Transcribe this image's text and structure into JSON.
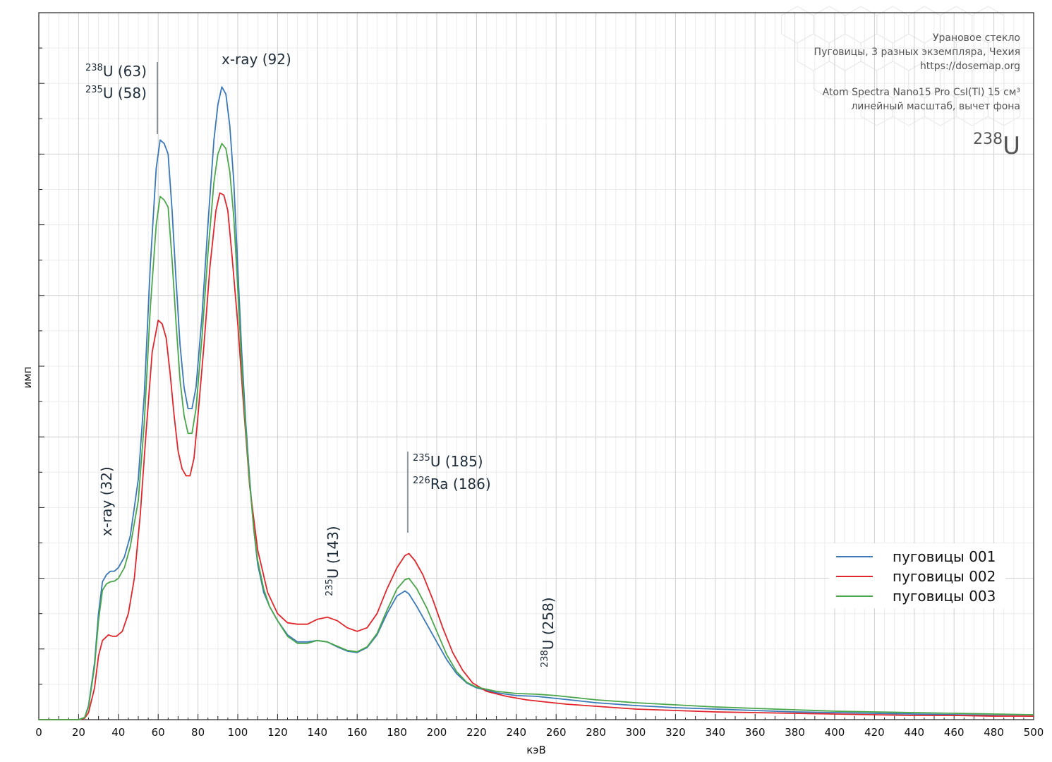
{
  "colors": {
    "series1": "#3a78b8",
    "series2": "#e0262b",
    "series3": "#4aa64a",
    "grid": "#d4d4d4",
    "axis": "#222222"
  },
  "info": {
    "lines": [
      "Урановое стекло",
      "Пуговицы, 3 разных экземпляра, Чехия",
      "https://dosemap.org",
      "Atom Spectra Nano15 Pro CsI(Tl) 15 см³",
      "линейный масштаб, вычет фона"
    ],
    "isotope_mass": "238",
    "isotope_symbol": "U"
  },
  "annotations": [
    {
      "id": "u238-63",
      "sup": "238",
      "text": "U (63)",
      "energy": 63
    },
    {
      "id": "u235-58",
      "sup": "235",
      "text": "U (58)",
      "energy": 58
    },
    {
      "id": "xray-92",
      "sup": "",
      "text": "x-ray (92)",
      "energy": 92
    },
    {
      "id": "xray-32",
      "sup": "",
      "text": "x-ray (32)",
      "energy": 32
    },
    {
      "id": "u235-143",
      "sup": "235",
      "text": "U (143)",
      "energy": 143
    },
    {
      "id": "u235-185",
      "sup": "235",
      "text": "U (185)",
      "energy": 185
    },
    {
      "id": "ra226-186",
      "sup": "226",
      "text": "Ra (186)",
      "energy": 186
    },
    {
      "id": "u238-258",
      "sup": "238",
      "text": "U (258)",
      "energy": 258
    }
  ],
  "chart_data": {
    "type": "line",
    "xlabel": "кэВ",
    "ylabel": "имп",
    "xlim": [
      0,
      500
    ],
    "ylim": [
      0,
      1000
    ],
    "x_ticks": [
      0,
      20,
      40,
      60,
      80,
      100,
      120,
      140,
      160,
      180,
      200,
      220,
      240,
      260,
      280,
      300,
      320,
      340,
      360,
      380,
      400,
      420,
      440,
      460,
      480,
      500
    ],
    "grid": true,
    "legend": "lower-right",
    "series": [
      {
        "name": "пуговицы 001",
        "color": "#3a78b8",
        "points": [
          [
            0,
            0
          ],
          [
            20,
            0
          ],
          [
            23,
            3
          ],
          [
            25,
            20
          ],
          [
            28,
            80
          ],
          [
            30,
            150
          ],
          [
            32,
            195
          ],
          [
            34,
            205
          ],
          [
            36,
            210
          ],
          [
            38,
            210
          ],
          [
            40,
            215
          ],
          [
            43,
            230
          ],
          [
            46,
            260
          ],
          [
            50,
            340
          ],
          [
            53,
            460
          ],
          [
            56,
            640
          ],
          [
            59,
            780
          ],
          [
            61,
            820
          ],
          [
            63,
            815
          ],
          [
            65,
            800
          ],
          [
            67,
            720
          ],
          [
            69,
            620
          ],
          [
            71,
            530
          ],
          [
            73,
            470
          ],
          [
            75,
            440
          ],
          [
            77,
            440
          ],
          [
            79,
            470
          ],
          [
            82,
            570
          ],
          [
            85,
            700
          ],
          [
            88,
            820
          ],
          [
            90,
            870
          ],
          [
            92,
            895
          ],
          [
            94,
            885
          ],
          [
            96,
            840
          ],
          [
            98,
            760
          ],
          [
            100,
            640
          ],
          [
            102,
            520
          ],
          [
            104,
            420
          ],
          [
            106,
            340
          ],
          [
            108,
            270
          ],
          [
            110,
            220
          ],
          [
            113,
            180
          ],
          [
            116,
            160
          ],
          [
            120,
            140
          ],
          [
            125,
            120
          ],
          [
            130,
            110
          ],
          [
            135,
            110
          ],
          [
            140,
            112
          ],
          [
            145,
            110
          ],
          [
            150,
            103
          ],
          [
            155,
            97
          ],
          [
            160,
            95
          ],
          [
            165,
            102
          ],
          [
            170,
            120
          ],
          [
            175,
            150
          ],
          [
            180,
            175
          ],
          [
            184,
            182
          ],
          [
            186,
            178
          ],
          [
            190,
            160
          ],
          [
            195,
            135
          ],
          [
            200,
            110
          ],
          [
            205,
            85
          ],
          [
            210,
            65
          ],
          [
            215,
            52
          ],
          [
            220,
            45
          ],
          [
            230,
            38
          ],
          [
            240,
            34
          ],
          [
            250,
            33
          ],
          [
            260,
            30
          ],
          [
            270,
            27
          ],
          [
            280,
            24
          ],
          [
            290,
            22
          ],
          [
            300,
            20
          ],
          [
            320,
            17
          ],
          [
            340,
            15
          ],
          [
            360,
            13
          ],
          [
            380,
            11
          ],
          [
            400,
            10
          ],
          [
            420,
            9
          ],
          [
            440,
            8
          ],
          [
            460,
            7
          ],
          [
            480,
            6
          ],
          [
            500,
            5
          ]
        ]
      },
      {
        "name": "пуговицы 002",
        "color": "#e0262b",
        "points": [
          [
            0,
            0
          ],
          [
            20,
            0
          ],
          [
            23,
            2
          ],
          [
            25,
            10
          ],
          [
            28,
            45
          ],
          [
            30,
            90
          ],
          [
            32,
            112
          ],
          [
            35,
            120
          ],
          [
            37,
            118
          ],
          [
            39,
            118
          ],
          [
            42,
            125
          ],
          [
            45,
            150
          ],
          [
            48,
            200
          ],
          [
            51,
            290
          ],
          [
            54,
            410
          ],
          [
            57,
            520
          ],
          [
            60,
            565
          ],
          [
            62,
            560
          ],
          [
            64,
            540
          ],
          [
            66,
            490
          ],
          [
            68,
            430
          ],
          [
            70,
            380
          ],
          [
            72,
            355
          ],
          [
            74,
            345
          ],
          [
            76,
            345
          ],
          [
            78,
            370
          ],
          [
            80,
            430
          ],
          [
            83,
            530
          ],
          [
            86,
            640
          ],
          [
            89,
            720
          ],
          [
            91,
            745
          ],
          [
            93,
            742
          ],
          [
            95,
            720
          ],
          [
            97,
            660
          ],
          [
            100,
            560
          ],
          [
            103,
            440
          ],
          [
            106,
            330
          ],
          [
            110,
            240
          ],
          [
            115,
            180
          ],
          [
            120,
            150
          ],
          [
            125,
            137
          ],
          [
            130,
            135
          ],
          [
            135,
            135
          ],
          [
            140,
            142
          ],
          [
            145,
            145
          ],
          [
            150,
            140
          ],
          [
            155,
            130
          ],
          [
            160,
            125
          ],
          [
            165,
            130
          ],
          [
            170,
            150
          ],
          [
            175,
            185
          ],
          [
            180,
            215
          ],
          [
            184,
            232
          ],
          [
            186,
            235
          ],
          [
            189,
            225
          ],
          [
            193,
            205
          ],
          [
            198,
            170
          ],
          [
            203,
            130
          ],
          [
            208,
            95
          ],
          [
            213,
            70
          ],
          [
            218,
            52
          ],
          [
            225,
            40
          ],
          [
            235,
            33
          ],
          [
            245,
            28
          ],
          [
            255,
            25
          ],
          [
            265,
            22
          ],
          [
            275,
            20
          ],
          [
            290,
            17
          ],
          [
            300,
            15
          ],
          [
            320,
            13
          ],
          [
            340,
            11
          ],
          [
            360,
            10
          ],
          [
            380,
            9
          ],
          [
            400,
            8
          ],
          [
            420,
            7
          ],
          [
            440,
            6
          ],
          [
            460,
            6
          ],
          [
            480,
            5
          ],
          [
            500,
            5
          ]
        ]
      },
      {
        "name": "пуговицы 003",
        "color": "#4aa64a",
        "points": [
          [
            0,
            0
          ],
          [
            20,
            0
          ],
          [
            23,
            3
          ],
          [
            25,
            18
          ],
          [
            28,
            75
          ],
          [
            30,
            140
          ],
          [
            32,
            183
          ],
          [
            34,
            192
          ],
          [
            36,
            195
          ],
          [
            38,
            196
          ],
          [
            40,
            200
          ],
          [
            43,
            215
          ],
          [
            46,
            245
          ],
          [
            50,
            310
          ],
          [
            53,
            420
          ],
          [
            56,
            580
          ],
          [
            59,
            700
          ],
          [
            61,
            740
          ],
          [
            63,
            735
          ],
          [
            65,
            725
          ],
          [
            67,
            650
          ],
          [
            69,
            560
          ],
          [
            71,
            480
          ],
          [
            73,
            430
          ],
          [
            75,
            405
          ],
          [
            77,
            405
          ],
          [
            79,
            440
          ],
          [
            82,
            540
          ],
          [
            85,
            660
          ],
          [
            88,
            760
          ],
          [
            90,
            800
          ],
          [
            92,
            815
          ],
          [
            94,
            808
          ],
          [
            96,
            775
          ],
          [
            98,
            710
          ],
          [
            100,
            610
          ],
          [
            102,
            500
          ],
          [
            104,
            410
          ],
          [
            106,
            335
          ],
          [
            108,
            270
          ],
          [
            110,
            225
          ],
          [
            113,
            185
          ],
          [
            116,
            160
          ],
          [
            120,
            140
          ],
          [
            125,
            118
          ],
          [
            130,
            108
          ],
          [
            135,
            108
          ],
          [
            140,
            112
          ],
          [
            145,
            110
          ],
          [
            150,
            104
          ],
          [
            155,
            98
          ],
          [
            160,
            96
          ],
          [
            165,
            103
          ],
          [
            170,
            122
          ],
          [
            175,
            155
          ],
          [
            180,
            185
          ],
          [
            184,
            198
          ],
          [
            186,
            200
          ],
          [
            190,
            185
          ],
          [
            195,
            158
          ],
          [
            200,
            125
          ],
          [
            205,
            92
          ],
          [
            210,
            68
          ],
          [
            215,
            53
          ],
          [
            220,
            46
          ],
          [
            230,
            40
          ],
          [
            240,
            37
          ],
          [
            250,
            36
          ],
          [
            260,
            34
          ],
          [
            270,
            31
          ],
          [
            280,
            28
          ],
          [
            290,
            26
          ],
          [
            300,
            24
          ],
          [
            320,
            21
          ],
          [
            340,
            18
          ],
          [
            360,
            16
          ],
          [
            380,
            14
          ],
          [
            400,
            12
          ],
          [
            420,
            11
          ],
          [
            440,
            10
          ],
          [
            460,
            9
          ],
          [
            480,
            8
          ],
          [
            500,
            7
          ]
        ]
      }
    ]
  }
}
